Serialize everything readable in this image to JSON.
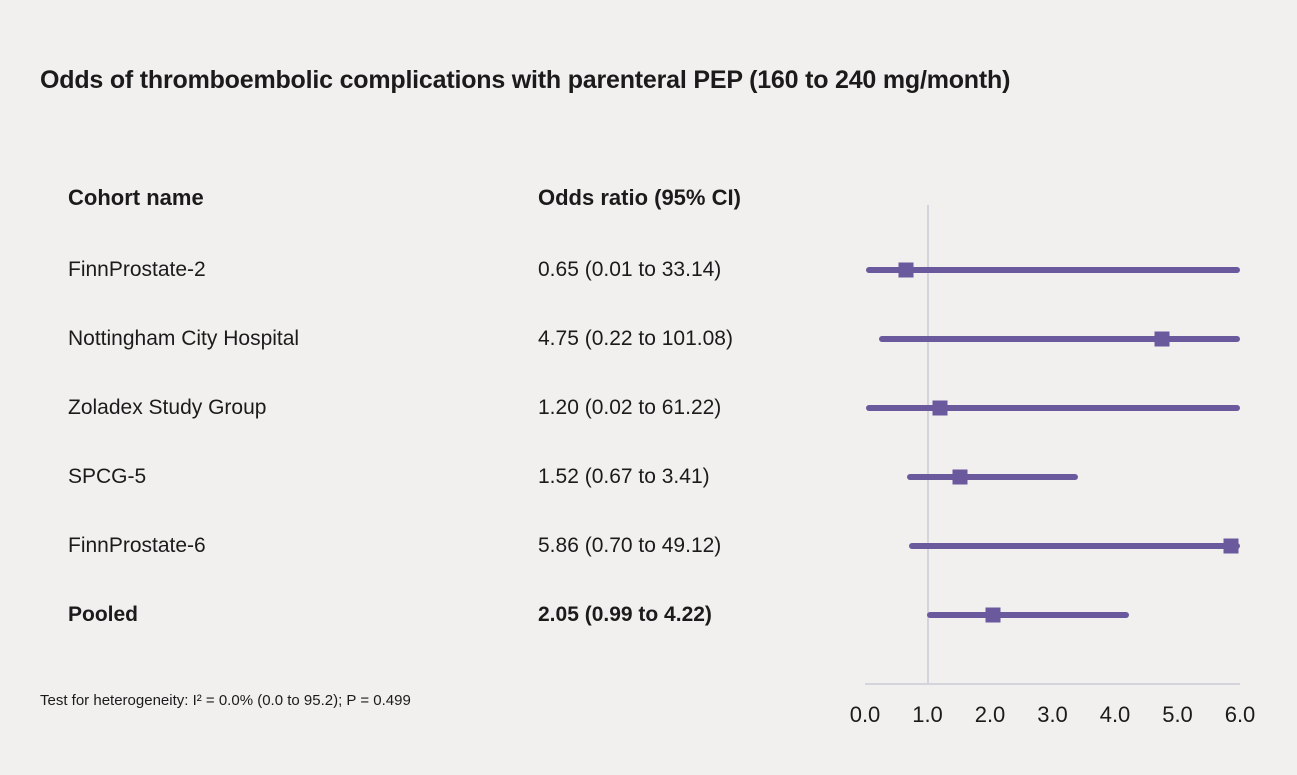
{
  "title": "Odds of thromboembolic complications with parenteral PEP (160 to 240 mg/month)",
  "columns": {
    "cohort": "Cohort name",
    "odds_ratio": "Odds ratio (95% CI)"
  },
  "footnote": "Test for heterogeneity: I² = 0.0% (0.0 to 95.2); P = 0.499",
  "colors": {
    "background": "#f1f0ee",
    "marker_purple": "#6a5a9d",
    "axis_gray": "#d4d4dc",
    "text": "#1b1b1b"
  },
  "chart_data": {
    "type": "forest",
    "title": "Odds of thromboembolic complications with parenteral PEP (160 to 240 mg/month)",
    "x_axis": {
      "ticks": [
        "0.0",
        "1.0",
        "2.0",
        "3.0",
        "4.0",
        "5.0",
        "6.0"
      ],
      "tick_values": [
        0,
        1,
        2,
        3,
        4,
        5,
        6
      ],
      "xlim": [
        0,
        6
      ],
      "scale": "linear",
      "reference_line": 1.0
    },
    "rows": [
      {
        "cohort": "FinnProstate-2",
        "label": "0.65 (0.01 to 33.14)",
        "estimate": 0.65,
        "lower": 0.01,
        "upper": 33.14,
        "bold": false
      },
      {
        "cohort": "Nottingham City Hospital",
        "label": "4.75 (0.22 to 101.08)",
        "estimate": 4.75,
        "lower": 0.22,
        "upper": 101.08,
        "bold": false
      },
      {
        "cohort": "Zoladex Study Group",
        "label": "1.20 (0.02 to 61.22)",
        "estimate": 1.2,
        "lower": 0.02,
        "upper": 61.22,
        "bold": false
      },
      {
        "cohort": "SPCG-5",
        "label": "1.52 (0.67 to 3.41)",
        "estimate": 1.52,
        "lower": 0.67,
        "upper": 3.41,
        "bold": false
      },
      {
        "cohort": "FinnProstate-6",
        "label": "5.86 (0.70 to 49.12)",
        "estimate": 5.86,
        "lower": 0.7,
        "upper": 49.12,
        "bold": false
      },
      {
        "cohort": "Pooled",
        "label": "2.05 (0.99 to 4.22)",
        "estimate": 2.05,
        "lower": 0.99,
        "upper": 4.22,
        "bold": true
      }
    ]
  }
}
